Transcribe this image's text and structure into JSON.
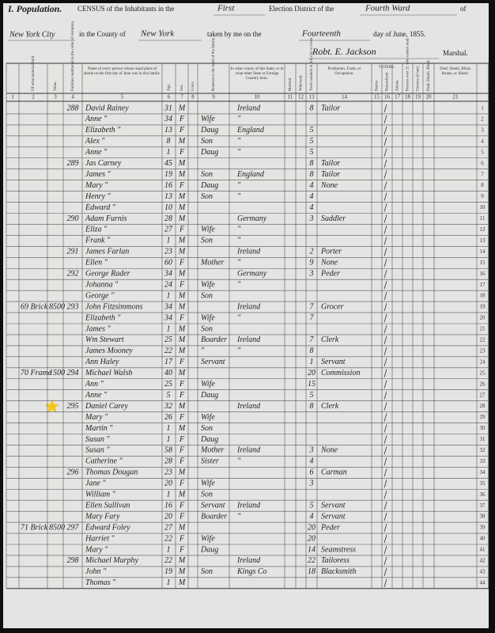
{
  "header": {
    "title": "I. Population.",
    "census": "CENSUS of the Inhabitants in the",
    "district": "First",
    "election": "Election District of the",
    "ward": "Fourth Ward",
    "of": "of",
    "city": "New York City",
    "county_label": "in the County of",
    "county": "New York",
    "taken": "taken by me on the",
    "day": "Fourteenth",
    "date": "day of June, 1855.",
    "marshal_name": "Robt. E. Jackson",
    "marshal": "Marshal."
  },
  "columns": [
    {
      "num": "1"
    },
    {
      "num": "2",
      "label": "Of what material built."
    },
    {
      "num": "3",
      "label": "Value."
    },
    {
      "num": "4",
      "label": "Families numbered in the order of visitation."
    },
    {
      "num": "5",
      "label": "Name of every person whose usual place of abode on the first day of June was in this family."
    },
    {
      "num": "6",
      "label": "Age."
    },
    {
      "num": "7",
      "label": "Sex."
    },
    {
      "num": "8",
      "label": "Color."
    },
    {
      "num": "9",
      "label": "Relation to the head of the family."
    },
    {
      "num": "10",
      "label": "In what county of this State, or in what other State or Foreign Country born."
    },
    {
      "num": "11",
      "label": "Married."
    },
    {
      "num": "12",
      "label": "Widowed."
    },
    {
      "num": "13",
      "label": "Years resident in this city or town."
    },
    {
      "num": "14",
      "label": "Profession, Trade, or Occupation."
    },
    {
      "num": "15",
      "label": "Native."
    },
    {
      "num": "16",
      "label": "Naturalized."
    },
    {
      "num": "17",
      "label": "Aliens."
    },
    {
      "num": "18",
      "label": "Persons over 21 who cannot read."
    },
    {
      "num": "19",
      "label": "Owners of land."
    },
    {
      "num": "20",
      "label": "Deaf, Dumb, Blind."
    },
    {
      "num": "21",
      "label": "Deaf, Dumb, Blind, Insane, or Idiotic."
    }
  ],
  "voters": "VOTERS.",
  "rows": [
    {
      "line": "1",
      "family": "288",
      "name": "David Rainey",
      "age": "31",
      "sex": "M",
      "born": "Ireland",
      "years": "8",
      "occupation": "Tailor"
    },
    {
      "line": "2",
      "name": "Anne  \"",
      "age": "34",
      "sex": "F",
      "relation": "Wife",
      "born": "\""
    },
    {
      "line": "3",
      "name": "Elizabeth \"",
      "age": "13",
      "sex": "F",
      "relation": "Daug",
      "born": "England",
      "years": "5"
    },
    {
      "line": "4",
      "name": "Alex  \"",
      "age": "8",
      "sex": "M",
      "relation": "Son",
      "born": "\"",
      "years": "5"
    },
    {
      "line": "5",
      "name": "Anne  \"",
      "age": "1",
      "sex": "F",
      "relation": "Daug",
      "born": "\"",
      "years": "5"
    },
    {
      "line": "6",
      "family": "289",
      "name": "Jas Carney",
      "age": "45",
      "sex": "M",
      "years": "8",
      "occupation": "Tailor"
    },
    {
      "line": "7",
      "name": "James  \"",
      "age": "19",
      "sex": "M",
      "relation": "Son",
      "born": "England",
      "years": "8",
      "occupation": "Tailor"
    },
    {
      "line": "8",
      "name": "Mary  \"",
      "age": "16",
      "sex": "F",
      "relation": "Daug",
      "born": "\"",
      "years": "4",
      "occupation": "None"
    },
    {
      "line": "9",
      "name": "Henry  \"",
      "age": "13",
      "sex": "M",
      "relation": "Son",
      "born": "\"",
      "years": "4"
    },
    {
      "line": "10",
      "name": "Edward  \"",
      "age": "10",
      "sex": "M",
      "years": "4"
    },
    {
      "line": "11",
      "family": "290",
      "name": "Adam Furnis",
      "age": "28",
      "sex": "M",
      "born": "Germany",
      "years": "3",
      "occupation": "Saddler"
    },
    {
      "line": "12",
      "name": "Eliza  \"",
      "age": "27",
      "sex": "F",
      "relation": "Wife",
      "born": "\""
    },
    {
      "line": "13",
      "name": "Frank  \"",
      "age": "1",
      "sex": "M",
      "relation": "Son",
      "born": "\""
    },
    {
      "line": "14",
      "family": "291",
      "name": "James Farlan",
      "age": "23",
      "sex": "M",
      "born": "Ireland",
      "years": "2",
      "occupation": "Porter"
    },
    {
      "line": "15",
      "name": "Ellen  \"",
      "age": "60",
      "sex": "F",
      "relation": "Mother",
      "born": "\"",
      "years": "9",
      "occupation": "None"
    },
    {
      "line": "16",
      "family": "292",
      "name": "George Rader",
      "age": "34",
      "sex": "M",
      "born": "Germany",
      "years": "3",
      "occupation": "Peder"
    },
    {
      "line": "17",
      "name": "Johanna  \"",
      "age": "24",
      "sex": "F",
      "relation": "Wife",
      "born": "\""
    },
    {
      "line": "18",
      "name": "George  \"",
      "age": "1",
      "sex": "M",
      "relation": "Son"
    },
    {
      "line": "19",
      "material": "69 Brick",
      "value": "8500",
      "family": "293",
      "name": "John Fitzsimmons",
      "age": "34",
      "sex": "M",
      "born": "Ireland",
      "years": "7",
      "occupation": "Grocer"
    },
    {
      "line": "20",
      "name": "Elizabeth  \"",
      "age": "34",
      "sex": "F",
      "relation": "Wife",
      "born": "\"",
      "years": "7"
    },
    {
      "line": "21",
      "name": "James  \"",
      "age": "1",
      "sex": "M",
      "relation": "Son"
    },
    {
      "line": "22",
      "name": "Wm Stewart",
      "age": "25",
      "sex": "M",
      "relation": "Boarder",
      "born": "Ireland",
      "years": "7",
      "occupation": "Clerk"
    },
    {
      "line": "23",
      "name": "James Mooney",
      "age": "22",
      "sex": "M",
      "relation": "\"",
      "born": "\"",
      "years": "8"
    },
    {
      "line": "24",
      "name": "Ann Haley",
      "age": "17",
      "sex": "F",
      "relation": "Servant",
      "years": "1",
      "occupation": "Servant"
    },
    {
      "line": "25",
      "material": "70 Frame",
      "value": "1500",
      "family": "294",
      "name": "Michael Walsh",
      "age": "40",
      "sex": "M",
      "years": "20",
      "occupation": "Commission"
    },
    {
      "line": "26",
      "name": "Ann  \"",
      "age": "25",
      "sex": "F",
      "relation": "Wife",
      "years": "15"
    },
    {
      "line": "27",
      "name": "Anne  \"",
      "age": "5",
      "sex": "F",
      "relation": "Daug",
      "years": "5"
    },
    {
      "line": "28",
      "family": "295",
      "name": "Daniel Carey",
      "age": "32",
      "sex": "M",
      "born": "Ireland",
      "years": "8",
      "occupation": "Clerk"
    },
    {
      "line": "29",
      "name": "Mary  \"",
      "age": "26",
      "sex": "F",
      "relation": "Wife"
    },
    {
      "line": "30",
      "name": "Martin  \"",
      "age": "1",
      "sex": "M",
      "relation": "Son"
    },
    {
      "line": "31",
      "name": "Susan  \"",
      "age": "1",
      "sex": "F",
      "relation": "Daug"
    },
    {
      "line": "32",
      "name": "Susan  \"",
      "age": "58",
      "sex": "F",
      "relation": "Mother",
      "born": "Ireland",
      "years": "3",
      "occupation": "None"
    },
    {
      "line": "33",
      "name": "Catherine  \"",
      "age": "28",
      "sex": "F",
      "relation": "Sister",
      "born": "\"",
      "years": "4"
    },
    {
      "line": "34",
      "family": "296",
      "name": "Thomas Dougan",
      "age": "23",
      "sex": "M",
      "years": "6",
      "occupation": "Carman"
    },
    {
      "line": "35",
      "name": "Jane  \"",
      "age": "20",
      "sex": "F",
      "relation": "Wife",
      "years": "3"
    },
    {
      "line": "36",
      "name": "William  \"",
      "age": "1",
      "sex": "M",
      "relation": "Son"
    },
    {
      "line": "37",
      "name": "Ellen Sullivan",
      "age": "16",
      "sex": "F",
      "relation": "Servant",
      "born": "Ireland",
      "years": "5",
      "occupation": "Servant"
    },
    {
      "line": "38",
      "name": "Mary Fary",
      "age": "20",
      "sex": "F",
      "relation": "Boarder",
      "born": "\"",
      "years": "4",
      "occupation": "Servant"
    },
    {
      "line": "39",
      "material": "71 Brick",
      "value": "8500",
      "family": "297",
      "name": "Edward Foley",
      "age": "27",
      "sex": "M",
      "years": "20",
      "occupation": "Peder"
    },
    {
      "line": "40",
      "name": "Harriet  \"",
      "age": "22",
      "sex": "F",
      "relation": "Wife",
      "years": "20"
    },
    {
      "line": "41",
      "name": "Mary  \"",
      "age": "1",
      "sex": "F",
      "relation": "Daug",
      "years": "14",
      "occupation": "Seamstress"
    },
    {
      "line": "42",
      "family": "298",
      "name": "Michael Murphy",
      "age": "22",
      "sex": "M",
      "born": "Ireland",
      "years": "22",
      "occupation": "Tailoress"
    },
    {
      "line": "43",
      "name": "John  \"",
      "age": "19",
      "sex": "M",
      "relation": "Son",
      "born": "Kings Co",
      "years": "18",
      "occupation": "Blacksmith"
    },
    {
      "line": "44",
      "name": "Thomas  \"",
      "age": "1",
      "sex": "M"
    }
  ]
}
